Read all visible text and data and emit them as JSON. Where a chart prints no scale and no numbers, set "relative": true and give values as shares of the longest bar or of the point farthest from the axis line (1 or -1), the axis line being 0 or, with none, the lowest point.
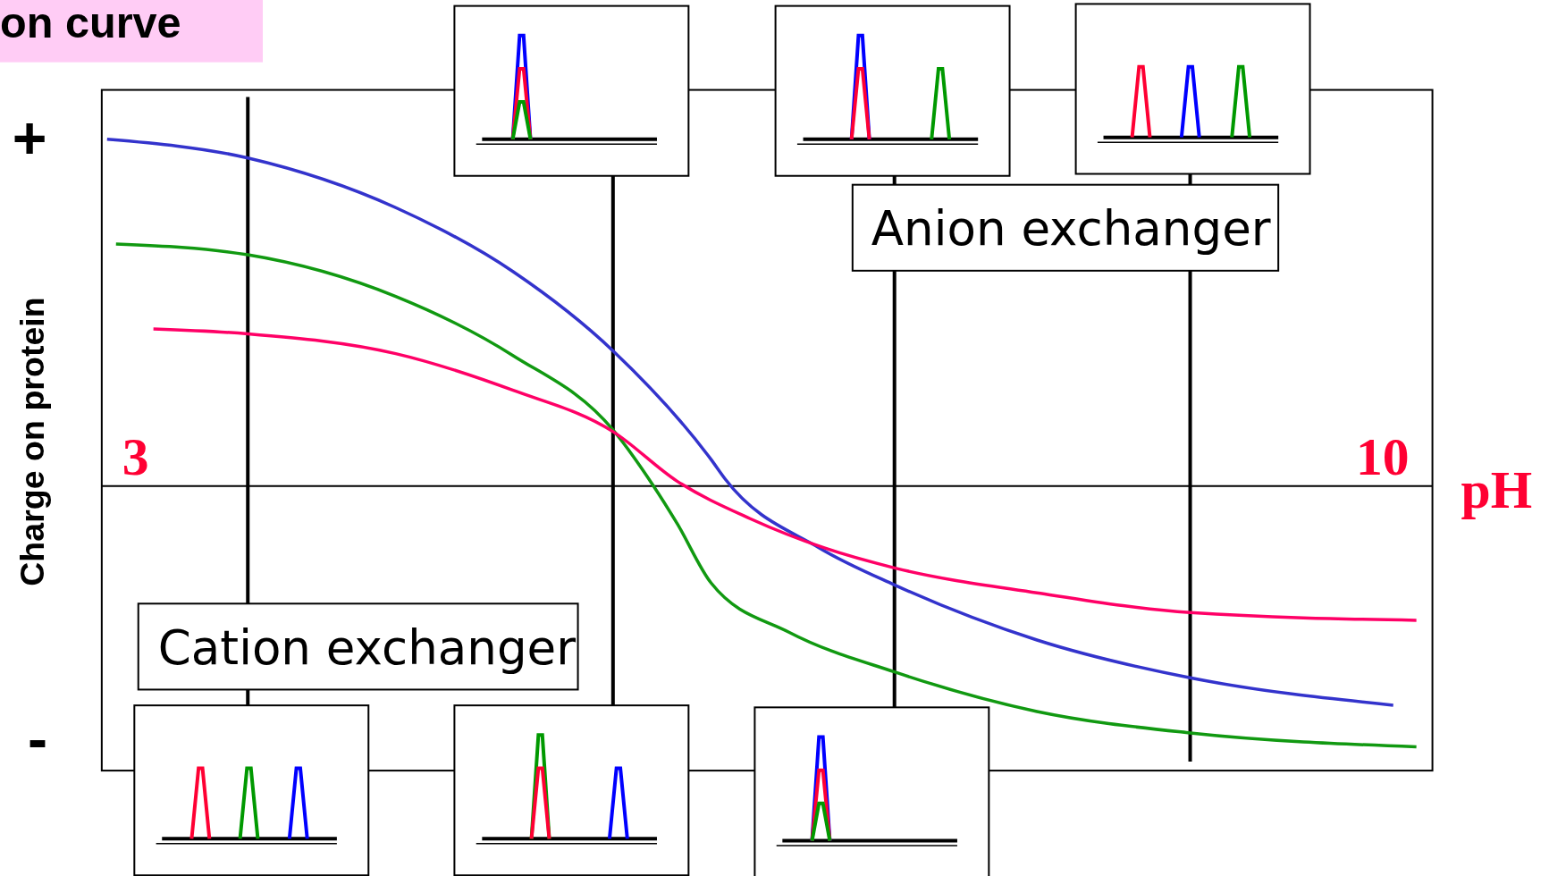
{
  "chart_data": {
    "type": "line",
    "title": "on curve",
    "xlabel": "pH",
    "ylabel": "Charge on protein",
    "relative": true,
    "xlim": [
      2.81,
      10.28
    ],
    "xticks": [
      3,
      10
    ],
    "grid": false,
    "marker": "none",
    "line_style": "solid",
    "annotations": [
      "Cation exchanger",
      "Anion exchanger",
      "+",
      "-"
    ],
    "ref_lines": [
      {
        "axis": "x",
        "value": 3.63,
        "label": null,
        "color": "#000000"
      },
      {
        "axis": "x",
        "value": 5.68,
        "label": null,
        "color": "#000000"
      },
      {
        "axis": "x",
        "value": 7.26,
        "label": null,
        "color": "#000000"
      },
      {
        "axis": "x",
        "value": 8.92,
        "label": null,
        "color": "#000000"
      }
    ],
    "series": [
      {
        "color": "#3333cc",
        "x": [
          2.84,
          3.63,
          4.46,
          5.12,
          5.68,
          6.23,
          6.31,
          6.84,
          7.26,
          8.06,
          8.92,
          10.06
        ],
        "values": [
          1.0,
          0.946,
          0.803,
          0.618,
          0.39,
          0.077,
          0.02,
          -0.179,
          -0.285,
          -0.444,
          -0.553,
          -0.632
        ]
      },
      {
        "color": "#119911",
        "x": [
          2.89,
          3.63,
          4.46,
          5.12,
          5.68,
          5.9,
          6.04,
          6.23,
          6.67,
          7.26,
          8.06,
          8.92,
          10.19
        ],
        "values": [
          0.698,
          0.667,
          0.547,
          0.376,
          0.162,
          0.006,
          -0.108,
          -0.279,
          -0.422,
          -0.536,
          -0.65,
          -0.712,
          -0.752
        ]
      },
      {
        "color": "#ff0066",
        "x": [
          3.1,
          3.63,
          4.46,
          5.12,
          5.68,
          6.04,
          6.45,
          6.87,
          7.26,
          8.06,
          8.92,
          10.19
        ],
        "values": [
          0.453,
          0.439,
          0.382,
          0.276,
          0.157,
          0.014,
          -0.094,
          -0.179,
          -0.236,
          -0.308,
          -0.365,
          -0.387
        ]
      }
    ]
  }
}
